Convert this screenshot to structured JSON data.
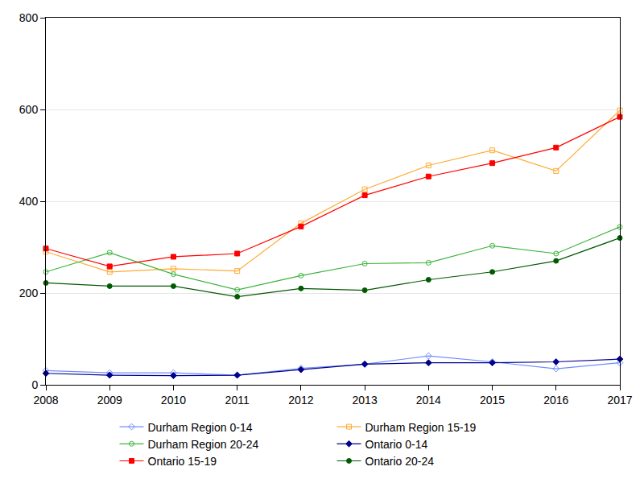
{
  "chart_data": {
    "type": "line",
    "x": [
      2008,
      2009,
      2010,
      2011,
      2012,
      2013,
      2014,
      2015,
      2016,
      2017
    ],
    "xlim": [
      2008,
      2017
    ],
    "xticks": [
      2008,
      2009,
      2010,
      2011,
      2012,
      2013,
      2014,
      2015,
      2016,
      2017
    ],
    "ylim": [
      0,
      800
    ],
    "yticks": [
      0,
      200,
      400,
      600,
      800
    ],
    "grid": true,
    "legend": "bottom",
    "series": [
      {
        "name": "Durham Region 0-14",
        "color": "#6f8cff",
        "marker": "diamond-open",
        "values": [
          31,
          26,
          26,
          21,
          36,
          45,
          63,
          50,
          35,
          48
        ]
      },
      {
        "name": "Durham Region 15-19",
        "color": "#ffaa33",
        "marker": "square-open",
        "values": [
          290,
          246,
          253,
          248,
          352,
          426,
          478,
          511,
          466,
          598
        ]
      },
      {
        "name": "Durham Region 20-24",
        "color": "#3cb43c",
        "marker": "circle-open",
        "values": [
          246,
          288,
          241,
          207,
          238,
          264,
          266,
          303,
          286,
          344
        ]
      },
      {
        "name": "Ontario 0-14",
        "color": "#00008b",
        "marker": "diamond",
        "values": [
          25,
          21,
          20,
          21,
          33,
          45,
          48,
          48,
          50,
          56
        ]
      },
      {
        "name": "Ontario 15-19",
        "color": "#ff0000",
        "marker": "square",
        "values": [
          297,
          258,
          279,
          286,
          345,
          413,
          454,
          483,
          517,
          584
        ]
      },
      {
        "name": "Ontario 20-24",
        "color": "#005a00",
        "marker": "circle",
        "values": [
          222,
          215,
          215,
          192,
          210,
          206,
          229,
          246,
          270,
          320
        ]
      }
    ]
  }
}
